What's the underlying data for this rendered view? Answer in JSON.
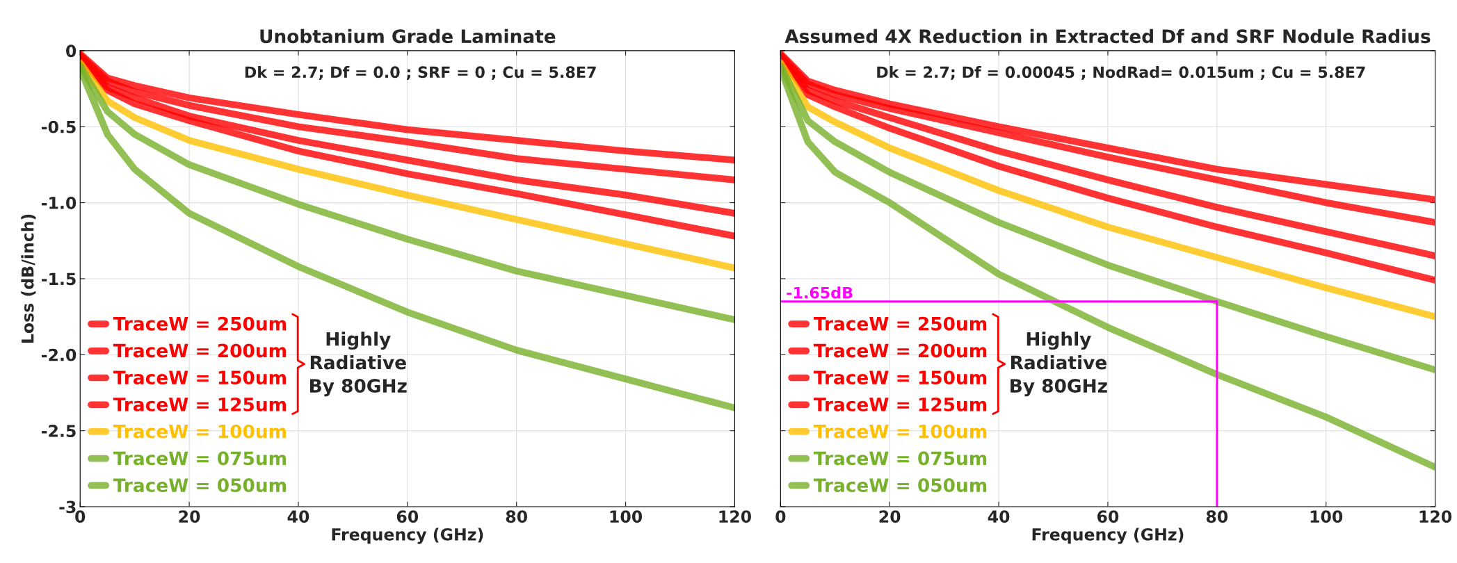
{
  "chart_data": [
    {
      "type": "line",
      "title": "Unobtanium Grade Laminate",
      "subtitle": "Dk = 2.7; Df = 0.0 ; SRF = 0 ; Cu = 5.8E7",
      "xlabel": "Frequency (GHz)",
      "ylabel": "Loss (dB/inch)",
      "x": [
        0,
        5,
        10,
        20,
        40,
        60,
        80,
        100,
        120
      ],
      "series": [
        {
          "name": "TraceW = 250um",
          "color": "#ff0000",
          "values": [
            -0.02,
            -0.18,
            -0.23,
            -0.31,
            -0.42,
            -0.52,
            -0.59,
            -0.66,
            -0.72
          ]
        },
        {
          "name": "TraceW = 200um",
          "color": "#ff0000",
          "values": [
            -0.03,
            -0.2,
            -0.27,
            -0.36,
            -0.5,
            -0.6,
            -0.71,
            -0.78,
            -0.85
          ]
        },
        {
          "name": "TraceW = 150um",
          "color": "#ff0000",
          "values": [
            -0.04,
            -0.24,
            -0.31,
            -0.43,
            -0.59,
            -0.72,
            -0.85,
            -0.95,
            -1.07
          ]
        },
        {
          "name": "TraceW = 125um",
          "color": "#ff0000",
          "values": [
            -0.05,
            -0.26,
            -0.35,
            -0.46,
            -0.66,
            -0.81,
            -0.94,
            -1.08,
            -1.22
          ]
        },
        {
          "name": "TraceW = 100um",
          "color": "#ffc000",
          "values": [
            -0.08,
            -0.33,
            -0.44,
            -0.59,
            -0.78,
            -0.95,
            -1.11,
            -1.27,
            -1.43
          ]
        },
        {
          "name": "TraceW = 075um",
          "color": "#77b02a",
          "values": [
            -0.1,
            -0.4,
            -0.55,
            -0.75,
            -1.01,
            -1.24,
            -1.45,
            -1.61,
            -1.77
          ]
        },
        {
          "name": "TraceW = 050um",
          "color": "#77b02a",
          "values": [
            -0.12,
            -0.55,
            -0.78,
            -1.07,
            -1.42,
            -1.72,
            -1.97,
            -2.16,
            -2.35
          ]
        }
      ],
      "xlim": [
        0,
        120
      ],
      "ylim": [
        -3,
        0
      ],
      "xticks": [
        0,
        20,
        40,
        60,
        80,
        100,
        120
      ],
      "yticks": [
        0,
        {
          "value": -0.5,
          "label": "-0.5"
        },
        {
          "value": -1,
          "label": "-1.0"
        },
        {
          "value": -1.5,
          "label": "-1.5"
        },
        {
          "value": -2,
          "label": "-2.0"
        },
        {
          "value": -2.5,
          "label": "-2.5"
        },
        {
          "value": -3,
          "label": "-3"
        }
      ],
      "grid": true,
      "legend": "bottom left",
      "marker": "none",
      "line_style": "solid",
      "annotations": [
        "Highly\nRadiative\nBy 80GHz"
      ]
    },
    {
      "type": "line",
      "title": "Assumed 4X Reduction in Extracted Df and SRF Nodule Radius",
      "subtitle": "Dk = 2.7; Df = 0.00045 ; NodRad= 0.015um ; Cu = 5.8E7",
      "xlabel": "Frequency (GHz)",
      "x": [
        0,
        5,
        10,
        20,
        40,
        60,
        80,
        100,
        120
      ],
      "series": [
        {
          "name": "TraceW = 250um",
          "color": "#ff0000",
          "values": [
            -0.02,
            -0.2,
            -0.26,
            -0.35,
            -0.5,
            -0.64,
            -0.78,
            -0.88,
            -0.98
          ]
        },
        {
          "name": "TraceW = 200um",
          "color": "#ff0000",
          "values": [
            -0.03,
            -0.22,
            -0.29,
            -0.38,
            -0.54,
            -0.7,
            -0.85,
            -1.0,
            -1.13
          ]
        },
        {
          "name": "TraceW = 150um",
          "color": "#ff0000",
          "values": [
            -0.04,
            -0.26,
            -0.33,
            -0.44,
            -0.66,
            -0.85,
            -1.03,
            -1.19,
            -1.35
          ]
        },
        {
          "name": "TraceW = 125um",
          "color": "#ff0000",
          "values": [
            -0.05,
            -0.29,
            -0.37,
            -0.51,
            -0.76,
            -0.97,
            -1.16,
            -1.33,
            -1.51
          ]
        },
        {
          "name": "TraceW = 100um",
          "color": "#ffc000",
          "values": [
            -0.08,
            -0.37,
            -0.47,
            -0.64,
            -0.92,
            -1.16,
            -1.36,
            -1.56,
            -1.75
          ]
        },
        {
          "name": "TraceW = 075um",
          "color": "#77b02a",
          "values": [
            -0.1,
            -0.46,
            -0.6,
            -0.8,
            -1.13,
            -1.41,
            -1.65,
            -1.88,
            -2.1
          ]
        },
        {
          "name": "TraceW = 050um",
          "color": "#77b02a",
          "values": [
            -0.12,
            -0.6,
            -0.8,
            -1.0,
            -1.47,
            -1.82,
            -2.13,
            -2.41,
            -2.74
          ]
        }
      ],
      "xlim": [
        0,
        120
      ],
      "ylim": [
        -3,
        0
      ],
      "xticks": [
        0,
        20,
        40,
        60,
        80,
        100,
        120
      ],
      "yticks": [
        {
          "value": 0,
          "label": null
        },
        {
          "value": -0.5,
          "label": null
        },
        {
          "value": -1,
          "label": null
        },
        {
          "value": -1.5,
          "label": null
        },
        {
          "value": -2,
          "label": null
        },
        {
          "value": -2.5,
          "label": null
        },
        {
          "value": -3,
          "label": null
        }
      ],
      "tick_labels": "x",
      "grid": true,
      "legend": "bottom left",
      "marker": "none",
      "line_style": "solid",
      "ref_lines": [
        {
          "axis": "y",
          "value": -1.65,
          "label": "-1.65dB",
          "color": "#ff00ff"
        },
        {
          "axis": "x",
          "value": 80,
          "color": "#ff00ff"
        }
      ],
      "annotations": [
        "Highly\nRadiative\nBy 80GHz"
      ]
    }
  ]
}
